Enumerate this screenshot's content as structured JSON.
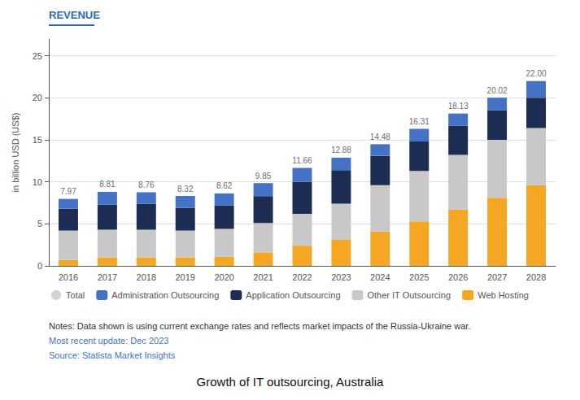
{
  "chart_data": {
    "type": "bar",
    "stacked": true,
    "title": "Growth of IT outsourcing, Australia",
    "subtitle": "REVENUE",
    "ylabel": "in billion USD (US$)",
    "annotations": [
      "Notes: Data shown is using current exchange rates and reflects market impacts of the Russia-Ukraine war.",
      "Most recent update: Dec 2023",
      "Source: Statista Market Insights"
    ],
    "categories": [
      "2016",
      "2017",
      "2018",
      "2019",
      "2020",
      "2021",
      "2022",
      "2023",
      "2024",
      "2025",
      "2026",
      "2027",
      "2028"
    ],
    "series": [
      {
        "name": "Web Hosting",
        "color": "#F5A623",
        "values": [
          0.7,
          1.0,
          1.0,
          1.0,
          1.1,
          1.6,
          2.4,
          3.1,
          4.1,
          5.3,
          6.7,
          8.1,
          9.6
        ]
      },
      {
        "name": "Other IT Outsourcing",
        "color": "#C8C8C8",
        "values": [
          3.5,
          3.3,
          3.3,
          3.2,
          3.3,
          3.5,
          3.8,
          4.3,
          5.5,
          6.0,
          6.5,
          6.9,
          6.8
        ]
      },
      {
        "name": "Application Outsourcing",
        "color": "#1C2C52",
        "values": [
          2.6,
          3.0,
          3.1,
          2.7,
          2.8,
          3.2,
          3.8,
          4.0,
          3.5,
          3.5,
          3.5,
          3.5,
          3.6
        ]
      },
      {
        "name": "Administration Outsourcing",
        "color": "#4472C4",
        "values": [
          1.17,
          1.51,
          1.36,
          1.42,
          1.42,
          1.55,
          1.66,
          1.48,
          1.38,
          1.51,
          1.43,
          1.52,
          2.0
        ]
      }
    ],
    "totals": {
      "name": "Total",
      "color": "#C8C8C8",
      "marker": "circle",
      "values": [
        7.97,
        8.81,
        8.76,
        8.32,
        8.62,
        9.85,
        11.66,
        12.88,
        14.48,
        16.31,
        18.13,
        20.02,
        22.0
      ],
      "value_labels": [
        "7.97",
        "8.81",
        "8.76",
        "8.32",
        "8.62",
        "9.85",
        "11.66",
        "12.88",
        "14.48",
        "16.31",
        "18.13",
        "20.02",
        "22.00"
      ]
    },
    "ylim": [
      0,
      27
    ],
    "yticks": [
      0,
      5,
      10,
      15,
      20,
      25
    ],
    "grid": true,
    "legend": "bottom"
  }
}
